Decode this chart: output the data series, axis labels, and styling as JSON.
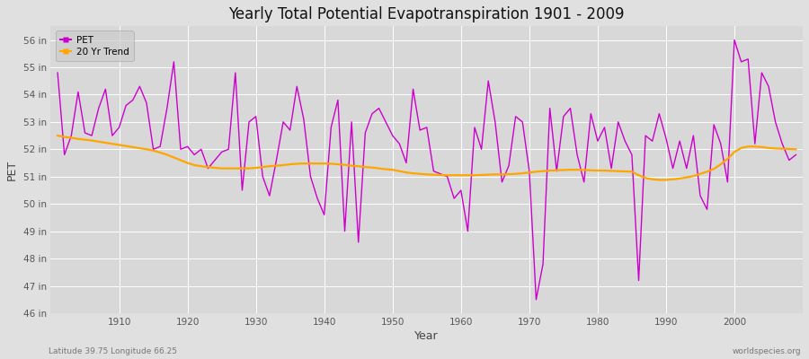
{
  "title": "Yearly Total Potential Evapotranspiration 1901 - 2009",
  "xlabel": "Year",
  "ylabel": "PET",
  "footnote_left": "Latitude 39.75 Longitude 66.25",
  "footnote_right": "worldspecies.org",
  "ylim_bottom": 46,
  "ylim_top": 56.5,
  "yticks": [
    46,
    47,
    48,
    49,
    50,
    51,
    52,
    53,
    54,
    55,
    56
  ],
  "ytick_labels": [
    "46 in",
    "47 in",
    "48 in",
    "49 in",
    "50 in",
    "51 in",
    "52 in",
    "53 in",
    "54 in",
    "55 in",
    "56 in"
  ],
  "xlim": [
    1900,
    2010
  ],
  "pet_color": "#CC00CC",
  "trend_color": "#FFA500",
  "fig_bg_color": "#E0E0E0",
  "plot_bg_color": "#D8D8D8",
  "grid_color": "#FFFFFF",
  "years": [
    1901,
    1902,
    1903,
    1904,
    1905,
    1906,
    1907,
    1908,
    1909,
    1910,
    1911,
    1912,
    1913,
    1914,
    1915,
    1916,
    1917,
    1918,
    1919,
    1920,
    1921,
    1922,
    1923,
    1924,
    1925,
    1926,
    1927,
    1928,
    1929,
    1930,
    1931,
    1932,
    1933,
    1934,
    1935,
    1936,
    1937,
    1938,
    1939,
    1940,
    1941,
    1942,
    1943,
    1944,
    1945,
    1946,
    1947,
    1948,
    1949,
    1950,
    1951,
    1952,
    1953,
    1954,
    1955,
    1956,
    1957,
    1958,
    1959,
    1960,
    1961,
    1962,
    1963,
    1964,
    1965,
    1966,
    1967,
    1968,
    1969,
    1970,
    1971,
    1972,
    1973,
    1974,
    1975,
    1976,
    1977,
    1978,
    1979,
    1980,
    1981,
    1982,
    1983,
    1984,
    1985,
    1986,
    1987,
    1988,
    1989,
    1990,
    1991,
    1992,
    1993,
    1994,
    1995,
    1996,
    1997,
    1998,
    1999,
    2000,
    2001,
    2002,
    2003,
    2004,
    2005,
    2006,
    2007,
    2008,
    2009
  ],
  "pet_values": [
    54.8,
    51.8,
    52.5,
    54.1,
    52.6,
    52.5,
    53.5,
    54.2,
    52.5,
    52.8,
    53.6,
    53.8,
    54.3,
    53.7,
    52.0,
    52.1,
    53.5,
    55.2,
    52.0,
    52.1,
    51.8,
    52.0,
    51.3,
    51.6,
    51.9,
    52.0,
    54.8,
    50.5,
    53.0,
    53.2,
    51.0,
    50.3,
    51.6,
    53.0,
    52.7,
    54.3,
    53.1,
    51.0,
    50.2,
    49.6,
    52.8,
    53.8,
    49.0,
    53.0,
    48.6,
    52.6,
    53.3,
    53.5,
    53.0,
    52.5,
    52.2,
    51.5,
    54.2,
    52.7,
    52.8,
    51.2,
    51.1,
    51.0,
    50.2,
    50.5,
    49.0,
    52.8,
    52.0,
    54.5,
    53.0,
    50.8,
    51.4,
    53.2,
    53.0,
    51.2,
    46.5,
    47.8,
    53.5,
    51.2,
    53.2,
    53.5,
    51.8,
    50.8,
    53.3,
    52.3,
    52.8,
    51.3,
    53.0,
    52.3,
    51.8,
    47.2,
    52.5,
    52.3,
    53.3,
    52.4,
    51.3,
    52.3,
    51.3,
    52.5,
    50.3,
    49.8,
    52.9,
    52.2,
    50.8,
    56.0,
    55.2,
    55.3,
    52.2,
    54.8,
    54.3,
    53.0,
    52.2,
    51.6,
    51.8
  ],
  "trend_values": [
    52.5,
    52.45,
    52.42,
    52.38,
    52.35,
    52.32,
    52.28,
    52.24,
    52.2,
    52.16,
    52.12,
    52.08,
    52.04,
    52.0,
    51.95,
    51.88,
    51.8,
    51.7,
    51.6,
    51.5,
    51.42,
    51.38,
    51.35,
    51.32,
    51.3,
    51.3,
    51.3,
    51.3,
    51.3,
    51.32,
    51.35,
    51.38,
    51.4,
    51.42,
    51.45,
    51.47,
    51.48,
    51.48,
    51.48,
    51.48,
    51.47,
    51.45,
    51.43,
    51.4,
    51.38,
    51.35,
    51.33,
    51.3,
    51.27,
    51.25,
    51.2,
    51.15,
    51.12,
    51.1,
    51.08,
    51.07,
    51.06,
    51.05,
    51.05,
    51.05,
    51.05,
    51.05,
    51.06,
    51.07,
    51.08,
    51.08,
    51.09,
    51.1,
    51.12,
    51.15,
    51.18,
    51.2,
    51.22,
    51.23,
    51.24,
    51.25,
    51.25,
    51.24,
    51.23,
    51.22,
    51.22,
    51.21,
    51.2,
    51.19,
    51.18,
    51.05,
    50.95,
    50.9,
    50.88,
    50.88,
    50.9,
    50.93,
    50.97,
    51.02,
    51.1,
    51.18,
    51.28,
    51.45,
    51.65,
    51.9,
    52.05,
    52.1,
    52.1,
    52.08,
    52.05,
    52.03,
    52.02,
    52.01,
    52.0
  ]
}
